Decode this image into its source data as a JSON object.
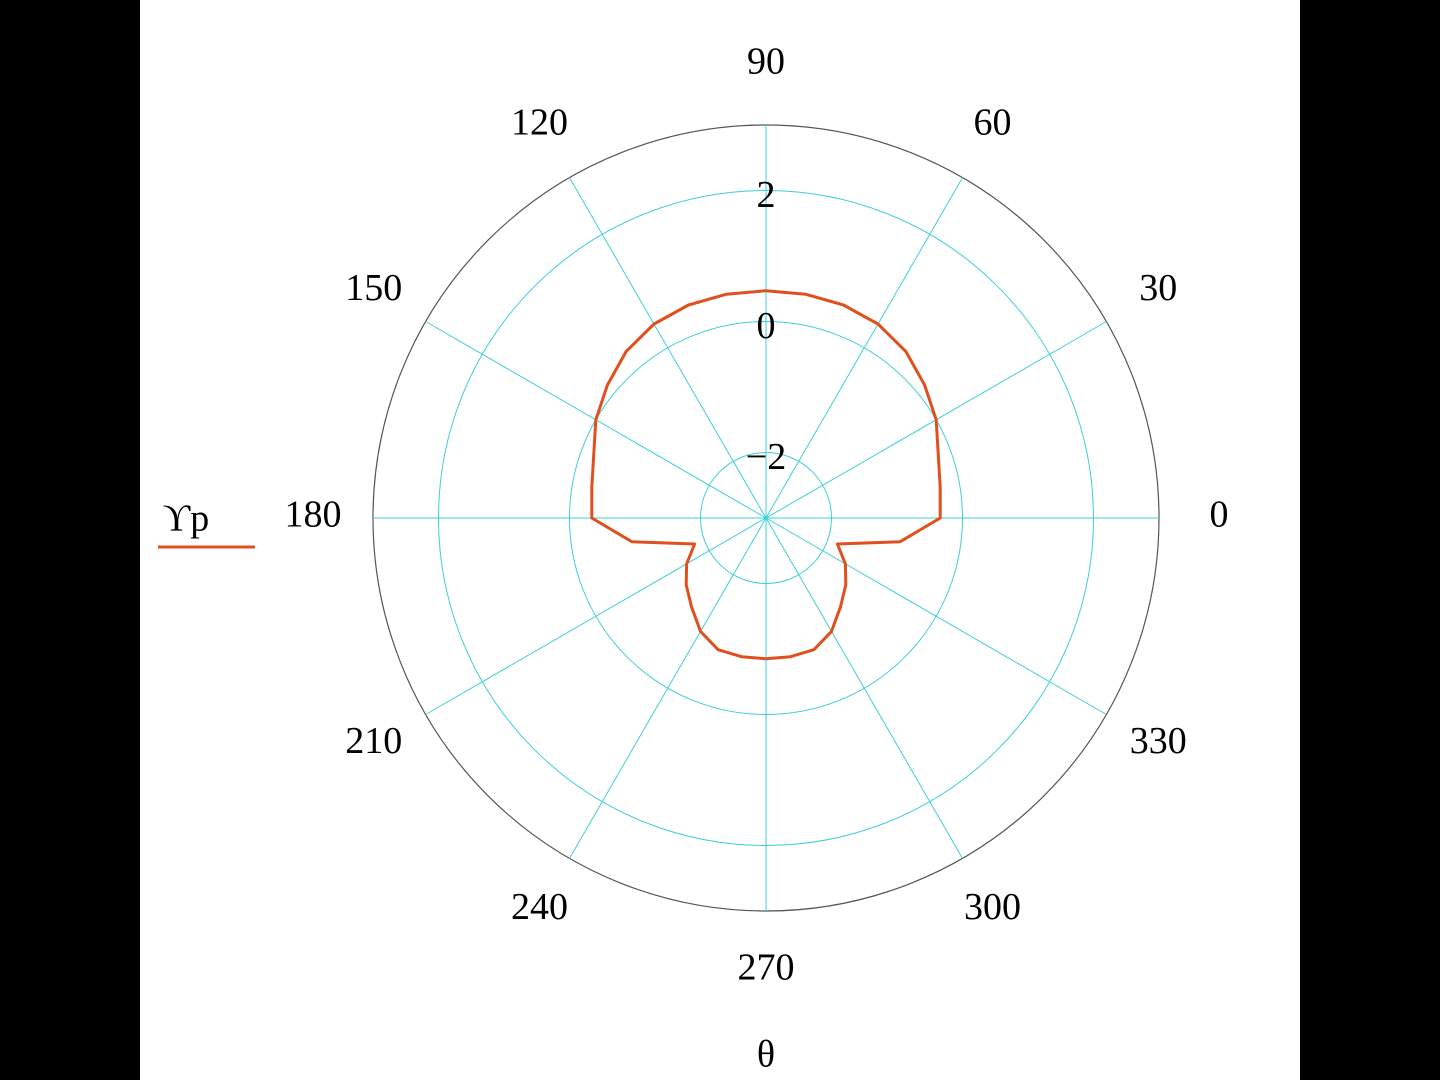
{
  "chart_data": {
    "type": "polar",
    "x_label": "θ",
    "x": [
      0,
      10,
      20,
      30,
      40,
      50,
      60,
      70,
      80,
      90,
      100,
      110,
      120,
      130,
      140,
      150,
      160,
      170,
      180,
      190,
      200,
      210,
      220,
      230,
      240,
      250,
      260,
      270,
      280,
      290,
      300,
      310,
      320,
      330,
      340,
      350
    ],
    "series": [
      {
        "name": "ϒp",
        "color": "#e0501e",
        "values": [
          -0.34,
          -0.3,
          -0.2,
          0,
          0.16,
          0.32,
          0.42,
          0.46,
          0.47,
          0.47,
          0.47,
          0.46,
          0.42,
          0.32,
          0.16,
          0,
          -0.2,
          -0.3,
          -0.34,
          -0.92,
          -1.84,
          -1.6,
          -1.41,
          -1.23,
          -1.0,
          -0.86,
          -0.85,
          -0.85,
          -0.85,
          -0.86,
          -1.0,
          -1.23,
          -1.41,
          -1.6,
          -1.84,
          -0.92
        ]
      }
    ],
    "xlim": [
      0,
      360
    ],
    "xticks": [
      0,
      30,
      60,
      90,
      120,
      150,
      180,
      210,
      240,
      270,
      300,
      330
    ],
    "ylim": [
      -3,
      3
    ],
    "yticks": [
      {
        "value": -2,
        "label": "−2"
      },
      0,
      2
    ],
    "grid": true
  }
}
